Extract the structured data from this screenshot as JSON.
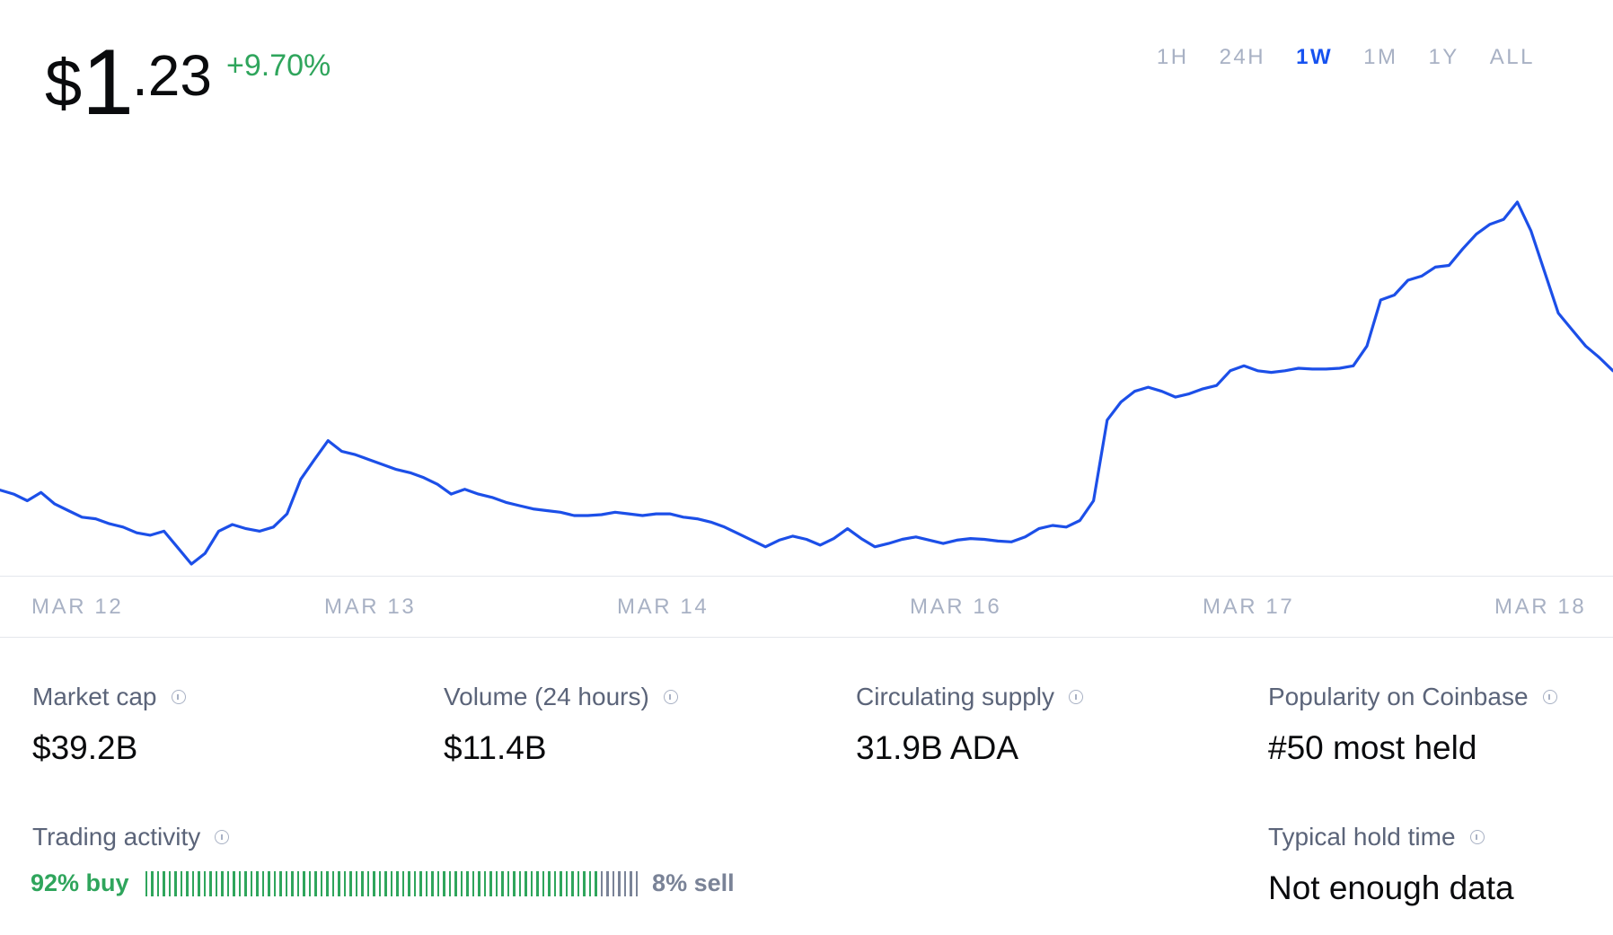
{
  "price": {
    "dollar": "$",
    "integer": "1",
    "decimal": ".23",
    "change": "+9.70%"
  },
  "timeframes": [
    {
      "label": "1H",
      "active": false
    },
    {
      "label": "24H",
      "active": false
    },
    {
      "label": "1W",
      "active": true
    },
    {
      "label": "1M",
      "active": false
    },
    {
      "label": "1Y",
      "active": false
    },
    {
      "label": "ALL",
      "active": false
    }
  ],
  "chart_data": {
    "type": "line",
    "color": "#1c4fe8",
    "x_tick_labels": [
      "MAR 12",
      "MAR 13",
      "MAR 14",
      "MAR 16",
      "MAR 17",
      "MAR 18"
    ],
    "series": [
      {
        "values": [
          1.045,
          1.04,
          1.032,
          1.042,
          1.028,
          1.02,
          1.012,
          1.01,
          1.004,
          1.0,
          0.993,
          0.99,
          0.995,
          0.975,
          0.955,
          0.968,
          0.995,
          1.003,
          0.998,
          0.995,
          1.0,
          1.016,
          1.058,
          1.082,
          1.105,
          1.092,
          1.088,
          1.082,
          1.076,
          1.07,
          1.066,
          1.06,
          1.052,
          1.04,
          1.046,
          1.04,
          1.036,
          1.03,
          1.026,
          1.022,
          1.02,
          1.018,
          1.014,
          1.014,
          1.015,
          1.018,
          1.016,
          1.014,
          1.016,
          1.016,
          1.012,
          1.01,
          1.006,
          1.0,
          0.992,
          0.984,
          0.976,
          0.984,
          0.989,
          0.985,
          0.978,
          0.986,
          0.998,
          0.986,
          0.976,
          0.98,
          0.985,
          0.988,
          0.984,
          0.98,
          0.984,
          0.986,
          0.985,
          0.983,
          0.982,
          0.988,
          0.998,
          1.002,
          1.0,
          1.008,
          1.032,
          1.13,
          1.152,
          1.165,
          1.17,
          1.165,
          1.158,
          1.162,
          1.168,
          1.172,
          1.19,
          1.196,
          1.19,
          1.188,
          1.19,
          1.193,
          1.192,
          1.192,
          1.193,
          1.196,
          1.22,
          1.276,
          1.282,
          1.3,
          1.305,
          1.316,
          1.318,
          1.338,
          1.356,
          1.368,
          1.374,
          1.395,
          1.36,
          1.31,
          1.26,
          1.24,
          1.22,
          1.206,
          1.19
        ]
      }
    ]
  },
  "stats": [
    {
      "label": "Market cap",
      "value": "$39.2B"
    },
    {
      "label": "Volume (24 hours)",
      "value": "$11.4B"
    },
    {
      "label": "Circulating supply",
      "value": "31.9B ADA"
    },
    {
      "label": "Popularity on Coinbase",
      "value": "#50 most held"
    }
  ],
  "trading": {
    "label": "Trading activity",
    "buy_label": "92% buy",
    "sell_label": "8% sell",
    "buy_fraction": 0.92
  },
  "hold": {
    "label": "Typical hold time",
    "value": "Not enough data"
  }
}
